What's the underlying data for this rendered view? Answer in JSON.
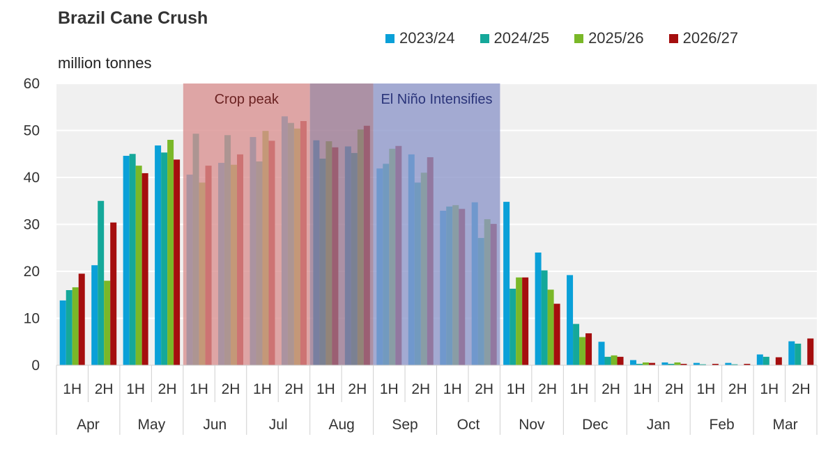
{
  "chart_data": {
    "type": "bar",
    "title": "Brazil Cane Crush",
    "ylabel": "million tonnes",
    "ylim": [
      0,
      60
    ],
    "yticks": [
      0,
      10,
      20,
      30,
      40,
      50,
      60
    ],
    "legend_position": "top-right",
    "months": [
      "Apr",
      "May",
      "Jun",
      "Jul",
      "Aug",
      "Sep",
      "Oct",
      "Nov",
      "Dec",
      "Jan",
      "Feb",
      "Mar"
    ],
    "halves": [
      "1H",
      "2H"
    ],
    "categories": [
      "Apr 1H",
      "Apr 2H",
      "May 1H",
      "May 2H",
      "Jun 1H",
      "Jun 2H",
      "Jul 1H",
      "Jul 2H",
      "Aug 1H",
      "Aug 2H",
      "Sep 1H",
      "Sep 2H",
      "Oct 1H",
      "Oct 2H",
      "Nov 1H",
      "Nov 2H",
      "Dec 1H",
      "Dec 2H",
      "Jan 1H",
      "Jan 2H",
      "Feb 1H",
      "Feb 2H",
      "Mar 1H",
      "Mar 2H"
    ],
    "series": [
      {
        "name": "2023/24",
        "color": "#0aa0d8",
        "values": [
          13.8,
          21.3,
          44.6,
          46.8,
          40.6,
          43.1,
          48.6,
          53.0,
          47.9,
          46.6,
          41.9,
          44.9,
          32.9,
          34.7,
          34.8,
          24.0,
          19.2,
          5.0,
          1.1,
          0.6,
          0.5,
          0.5,
          2.3,
          5.1
        ]
      },
      {
        "name": "2024/25",
        "color": "#15a89a",
        "values": [
          16.0,
          35.0,
          45.0,
          45.3,
          49.3,
          49.0,
          43.4,
          51.6,
          44.0,
          45.2,
          42.9,
          38.9,
          33.8,
          27.1,
          16.3,
          20.2,
          8.8,
          1.8,
          0.3,
          0.3,
          0.2,
          0.2,
          1.8,
          4.6
        ]
      },
      {
        "name": "2025/26",
        "color": "#7ab828",
        "values": [
          16.6,
          18.0,
          42.5,
          48.0,
          38.9,
          42.7,
          49.9,
          50.4,
          47.7,
          50.2,
          46.1,
          41.0,
          34.1,
          31.1,
          18.7,
          16.1,
          6.0,
          2.1,
          0.6,
          0.6,
          0.0,
          0.0,
          0.0,
          0.0
        ]
      },
      {
        "name": "2026/27",
        "color": "#a50e0e",
        "values": [
          19.5,
          30.4,
          40.9,
          43.8,
          42.5,
          44.9,
          47.8,
          52.0,
          46.4,
          51.0,
          46.7,
          44.3,
          33.3,
          30.1,
          18.7,
          13.1,
          6.8,
          1.8,
          0.5,
          0.3,
          0.3,
          0.3,
          1.7,
          5.7
        ]
      }
    ],
    "annotations": [
      {
        "label": "Crop peak",
        "from": "Jun 1H",
        "to": "Jul 2H",
        "color": "#d99090",
        "text_color": "#6b2222"
      },
      {
        "label": "",
        "from": "Aug 1H",
        "to": "Aug 2H",
        "color": "#98768f",
        "text_color": "#333333"
      },
      {
        "label": "El Niño Intensifies",
        "from": "Sep 1H",
        "to": "Oct 2H",
        "color": "#8d96c9",
        "text_color": "#2a347a"
      }
    ]
  }
}
